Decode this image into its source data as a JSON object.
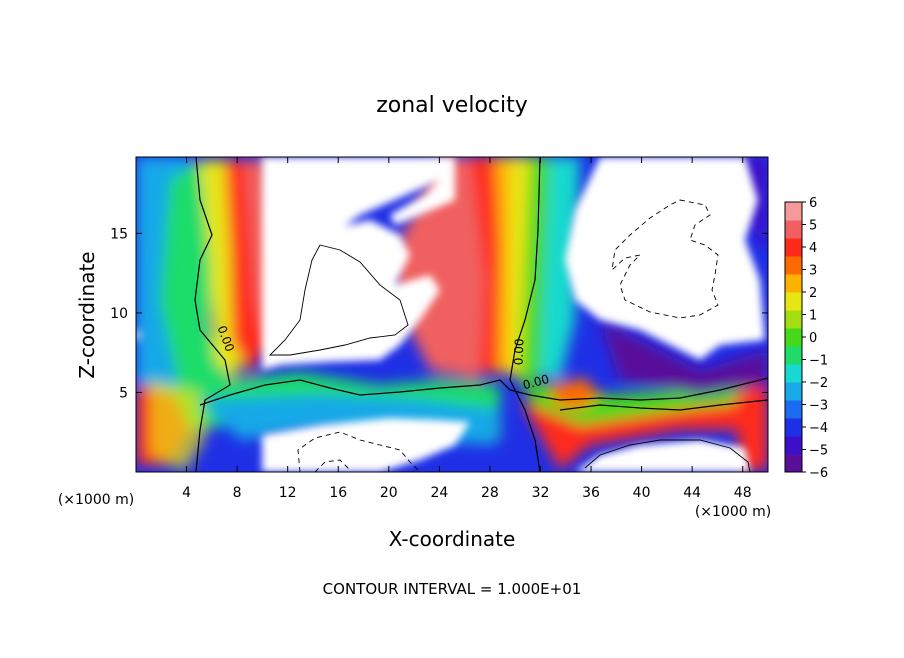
{
  "chart_data": {
    "type": "heatmap",
    "title": "zonal velocity",
    "xlabel": "X-coordinate",
    "ylabel": "Z-coordinate",
    "x_unit_left": "(×1000 m)",
    "x_unit_right": "(×1000 m)",
    "footer": "CONTOUR INTERVAL = 1.000E+01",
    "xlim": [
      0,
      50
    ],
    "ylim": [
      0,
      19.8
    ],
    "x_ticks": [
      4,
      8,
      12,
      16,
      20,
      24,
      28,
      32,
      36,
      40,
      44,
      48
    ],
    "y_ticks": [
      5,
      10,
      15
    ],
    "colorbar": {
      "min": -6,
      "max": 6,
      "labels": [
        6,
        5,
        4,
        3,
        2,
        1,
        0,
        -1,
        -2,
        -3,
        -4,
        -5,
        -6
      ],
      "label_text": [
        "6",
        "5",
        "4",
        "3",
        "2",
        "1",
        "0",
        "−1",
        "−2",
        "−3",
        "−4",
        "−5",
        "−6"
      ],
      "colors": [
        "#5a0f9a",
        "#3b10c8",
        "#1f2fe6",
        "#1b6cf0",
        "#19a8e8",
        "#17d9cf",
        "#1fdc6a",
        "#46d81a",
        "#a3de12",
        "#e8e612",
        "#ffb300",
        "#ff6a00",
        "#ff2a1a",
        "#f06060",
        "#f49a9a"
      ]
    },
    "contour_labels": [
      "0.00",
      "0.00",
      "0.00"
    ],
    "contour_label_level": 0.0
  },
  "colors": {
    "background": "#ffffff",
    "text": "#000000"
  }
}
